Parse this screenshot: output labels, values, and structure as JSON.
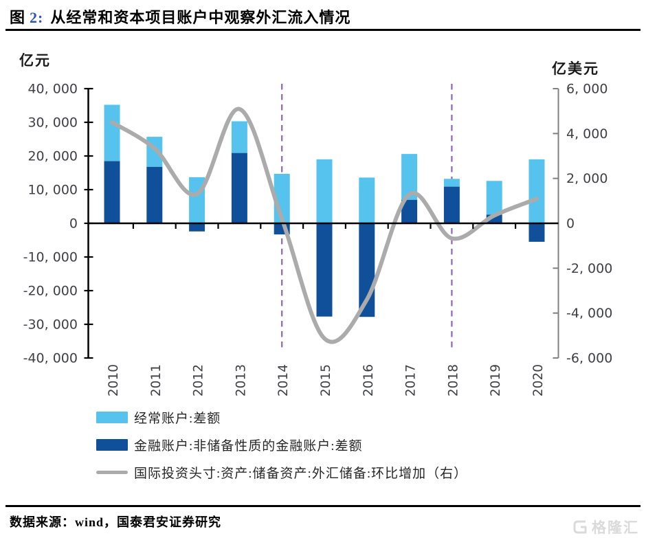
{
  "title": {
    "fig_label": "图",
    "fig_num": "2:",
    "text": "从经常和资本项目账户中观察外汇流入情况"
  },
  "source_note": {
    "label": "数据来源：",
    "text": "wind，国泰君安证券研究"
  },
  "watermark": {
    "text": "格隆汇",
    "color": "#DADADA"
  },
  "chart_data": {
    "type": "bar",
    "subtype": "stacked-bars-with-line",
    "stacked": true,
    "grid": false,
    "categories": [
      "2010",
      "2011",
      "2012",
      "2013",
      "2014",
      "2015",
      "2016",
      "2017",
      "2018",
      "2019",
      "2020"
    ],
    "series": [
      {
        "name": "经常账户:差额",
        "type": "bar",
        "axis": "left",
        "color": "#56C3EE",
        "values": [
          16700,
          8900,
          13700,
          9400,
          14700,
          19000,
          13600,
          13600,
          2300,
          10000,
          19000
        ]
      },
      {
        "name": "金融账户:非储备性质的金融账户:差额",
        "type": "bar",
        "axis": "left",
        "color": "#10509B",
        "values": [
          18500,
          16800,
          -2400,
          20900,
          -3300,
          -27700,
          -27800,
          7000,
          10900,
          2600,
          -5500
        ]
      },
      {
        "name": "国际投资头寸:资产:储备资产:外汇储备:环比增加（右）",
        "type": "line",
        "axis": "right",
        "color": "#ABABAB",
        "values": [
          4500,
          3340,
          1300,
          5090,
          200,
          -5130,
          -3400,
          1290,
          -670,
          350,
          1090
        ]
      }
    ],
    "left_axis": {
      "title": "亿元",
      "min": -40000,
      "max": 40000,
      "step": 10000,
      "tick_labels": [
        "40, 000",
        "30, 000",
        "20, 000",
        "10, 000",
        "0",
        "-10, 000",
        "-20, 000",
        "-30, 000",
        "-40, 000"
      ]
    },
    "right_axis": {
      "title": "亿美元",
      "min": -6000,
      "max": 6000,
      "step": 2000,
      "tick_labels": [
        "6, 000",
        "4, 000",
        "2, 000",
        "0",
        "-2, 000",
        "-4, 000",
        "-6, 000"
      ]
    },
    "highlight_years": [
      "2014",
      "2018"
    ],
    "highlight_color": "#9173BD",
    "axis_text_color": "#3F4045",
    "left_axis_color": "#000000",
    "right_axis_color": "#808080",
    "zero_line_color": "#000000"
  }
}
